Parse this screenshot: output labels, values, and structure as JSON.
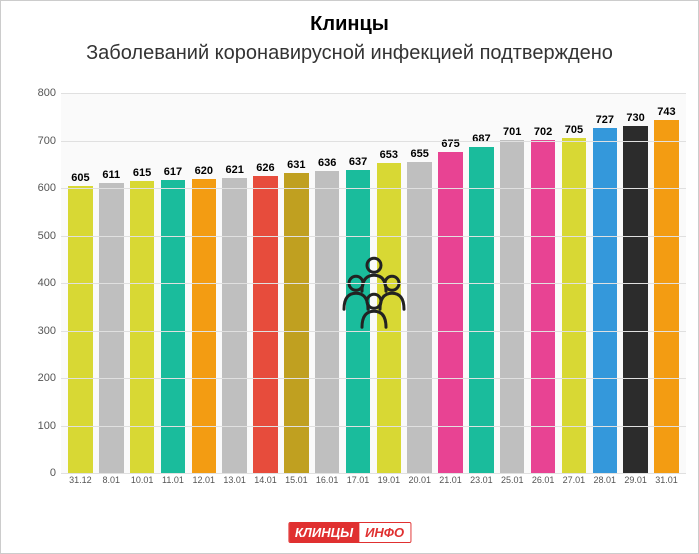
{
  "title": "Клинцы",
  "subtitle": "Заболеваний коронавирусной инфекцией подтверждено",
  "chart": {
    "type": "bar",
    "background_color": "#fafafa",
    "grid_color": "#e0e0e0",
    "ylim": [
      0,
      800
    ],
    "ytick_step": 100,
    "title_fontsize": 20,
    "subtitle_fontsize": 20,
    "label_fontsize": 11,
    "xlabel_fontsize": 9,
    "bar_width": 0.85,
    "categories": [
      "31.12",
      "8.01",
      "10.01",
      "11.01",
      "12.01",
      "13.01",
      "14.01",
      "15.01",
      "16.01",
      "17.01",
      "19.01",
      "20.01",
      "21.01",
      "23.01",
      "25.01",
      "26.01",
      "27.01",
      "28.01",
      "29.01",
      "31.01"
    ],
    "values": [
      605,
      611,
      615,
      617,
      620,
      621,
      626,
      631,
      636,
      637,
      653,
      655,
      675,
      687,
      701,
      702,
      705,
      727,
      730,
      743
    ],
    "bar_colors": [
      "#d8d834",
      "#bfbfbf",
      "#d8d834",
      "#1abc9c",
      "#f39c12",
      "#bfbfbf",
      "#e74c3c",
      "#c0a020",
      "#bfbfbf",
      "#1abc9c",
      "#d8d834",
      "#bfbfbf",
      "#e84393",
      "#1abc9c",
      "#bfbfbf",
      "#e84393",
      "#d8d834",
      "#3498db",
      "#2c2c2c",
      "#f39c12"
    ]
  },
  "logo": {
    "part1": "КЛИНЦЫ",
    "part2": "ИНФО"
  }
}
